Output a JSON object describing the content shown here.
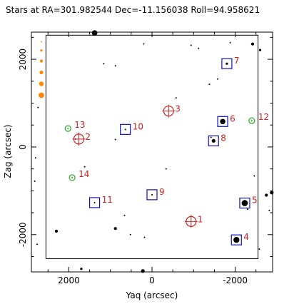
{
  "chart_data": {
    "type": "scatter",
    "title": "Stars at RA=301.982544 Dec=-11.156038 Roll=94.958621",
    "xlabel": "Yaq (arcsec)",
    "ylabel": "Zag (arcsec)",
    "xlim": [
      2900,
      -2900
    ],
    "ylim": [
      -2850,
      2620
    ],
    "x_ticks": [
      2000,
      0,
      -2000
    ],
    "x_tick_labels": [
      "2000",
      "0",
      "-2000"
    ],
    "y_ticks": [
      2000,
      0,
      -2000
    ],
    "y_tick_labels": [
      "2000",
      "0",
      "-2000"
    ],
    "minor_tick_step": 500,
    "grid": false,
    "legend": "none",
    "ccd_box": {
      "x_min": -2550,
      "x_max": 2550,
      "y_min": -2550,
      "y_max": 2550
    },
    "colors": {
      "acq_box": "#1010c0",
      "guide_circle": "#cc2222",
      "fid_circle": "#22aa22",
      "bad_star": "#ff8800",
      "star": "#000000",
      "label": "#cc2222"
    },
    "acq_guide_stars": [
      {
        "id": "1",
        "yaq": -940,
        "zag": -1700,
        "type": "guide"
      },
      {
        "id": "2",
        "yaq": 1760,
        "zag": 180,
        "type": "guide"
      },
      {
        "id": "3",
        "yaq": -400,
        "zag": 820,
        "type": "guide"
      },
      {
        "id": "4",
        "yaq": -2030,
        "zag": -2120,
        "type": "acq"
      },
      {
        "id": "5",
        "yaq": -2230,
        "zag": -1280,
        "type": "acq"
      },
      {
        "id": "6",
        "yaq": -1700,
        "zag": 580,
        "type": "acq"
      },
      {
        "id": "7",
        "yaq": -1800,
        "zag": 1900,
        "type": "acq"
      },
      {
        "id": "8",
        "yaq": -1480,
        "zag": 140,
        "type": "acq"
      },
      {
        "id": "9",
        "yaq": 0,
        "zag": -1090,
        "type": "acq"
      },
      {
        "id": "10",
        "yaq": 640,
        "zag": 400,
        "type": "acq"
      },
      {
        "id": "11",
        "yaq": 1380,
        "zag": -1270,
        "type": "acq"
      },
      {
        "id": "12",
        "yaq": -2400,
        "zag": 600,
        "type": "fid"
      },
      {
        "id": "13",
        "yaq": 2020,
        "zag": 420,
        "type": "fid"
      },
      {
        "id": "14",
        "yaq": 1920,
        "zag": -700,
        "type": "fid"
      }
    ],
    "stars": [
      {
        "yaq": -2030,
        "zag": -2120,
        "mag": 8.4
      },
      {
        "yaq": -2230,
        "zag": -1280,
        "mag": 8.3
      },
      {
        "yaq": -1700,
        "zag": 580,
        "mag": 8.7
      },
      {
        "yaq": -1800,
        "zag": 1900,
        "mag": 10.0
      },
      {
        "yaq": -1480,
        "zag": 140,
        "mag": 9.4
      },
      {
        "yaq": 0,
        "zag": -1090,
        "mag": 10.4
      },
      {
        "yaq": 640,
        "zag": 400,
        "mag": 10.4
      },
      {
        "yaq": 1380,
        "zag": -1270,
        "mag": 10.4
      },
      {
        "yaq": 1380,
        "zag": 2600,
        "mag": 8.6
      },
      {
        "yaq": 200,
        "zag": 2350,
        "mag": 10.4
      },
      {
        "yaq": -940,
        "zag": 2320,
        "mag": 10.4
      },
      {
        "yaq": -1120,
        "zag": 2250,
        "mag": 10.4
      },
      {
        "yaq": -1880,
        "zag": 2380,
        "mag": 10.4
      },
      {
        "yaq": -2420,
        "zag": 2350,
        "mag": 9.7
      },
      {
        "yaq": -2600,
        "zag": 2210,
        "mag": 10.0
      },
      {
        "yaq": 1160,
        "zag": 1900,
        "mag": 10.4
      },
      {
        "yaq": 880,
        "zag": 1850,
        "mag": 10.4
      },
      {
        "yaq": -1380,
        "zag": 1430,
        "mag": 10.4
      },
      {
        "yaq": -1580,
        "zag": 1550,
        "mag": 10.4
      },
      {
        "yaq": -580,
        "zag": 1120,
        "mag": 10.4
      },
      {
        "yaq": 2740,
        "zag": 900,
        "mag": 10.4
      },
      {
        "yaq": 1840,
        "zag": 180,
        "mag": 10.4
      },
      {
        "yaq": 880,
        "zag": 170,
        "mag": 10.4
      },
      {
        "yaq": 1620,
        "zag": -450,
        "mag": 10.4
      },
      {
        "yaq": -340,
        "zag": -500,
        "mag": 10.4
      },
      {
        "yaq": -1420,
        "zag": 220,
        "mag": 10.4
      },
      {
        "yaq": -2460,
        "zag": -660,
        "mag": 10.4
      },
      {
        "yaq": 2800,
        "zag": -250,
        "mag": 10.4
      },
      {
        "yaq": 2820,
        "zag": -780,
        "mag": 10.4
      },
      {
        "yaq": -2750,
        "zag": -1100,
        "mag": 9.7
      },
      {
        "yaq": -2880,
        "zag": -1040,
        "mag": 9.4
      },
      {
        "yaq": -2820,
        "zag": -1450,
        "mag": 10.4
      },
      {
        "yaq": -2300,
        "zag": -1420,
        "mag": 10.4
      },
      {
        "yaq": 660,
        "zag": -1560,
        "mag": 10.4
      },
      {
        "yaq": 880,
        "zag": -1860,
        "mag": 9.7
      },
      {
        "yaq": 520,
        "zag": -2000,
        "mag": 10.4
      },
      {
        "yaq": 180,
        "zag": -2060,
        "mag": 10.4
      },
      {
        "yaq": 2300,
        "zag": -1920,
        "mag": 9.7
      },
      {
        "yaq": 2760,
        "zag": -2220,
        "mag": 10.4
      },
      {
        "yaq": -2580,
        "zag": -2330,
        "mag": 10.4
      },
      {
        "yaq": 1700,
        "zag": -2780,
        "mag": 10.0
      },
      {
        "yaq": 220,
        "zag": -2830,
        "mag": 9.4
      }
    ],
    "bad_stars": [
      {
        "yaq": 2660,
        "zag": 2400,
        "mag": 10.4
      },
      {
        "yaq": 2660,
        "zag": 2200,
        "mag": 10.0
      },
      {
        "yaq": 2660,
        "zag": 1960,
        "mag": 9.7
      },
      {
        "yaq": 2660,
        "zag": 1700,
        "mag": 9.4
      },
      {
        "yaq": 2660,
        "zag": 1440,
        "mag": 9.0
      },
      {
        "yaq": 2660,
        "zag": 1180,
        "mag": 8.6
      }
    ]
  }
}
